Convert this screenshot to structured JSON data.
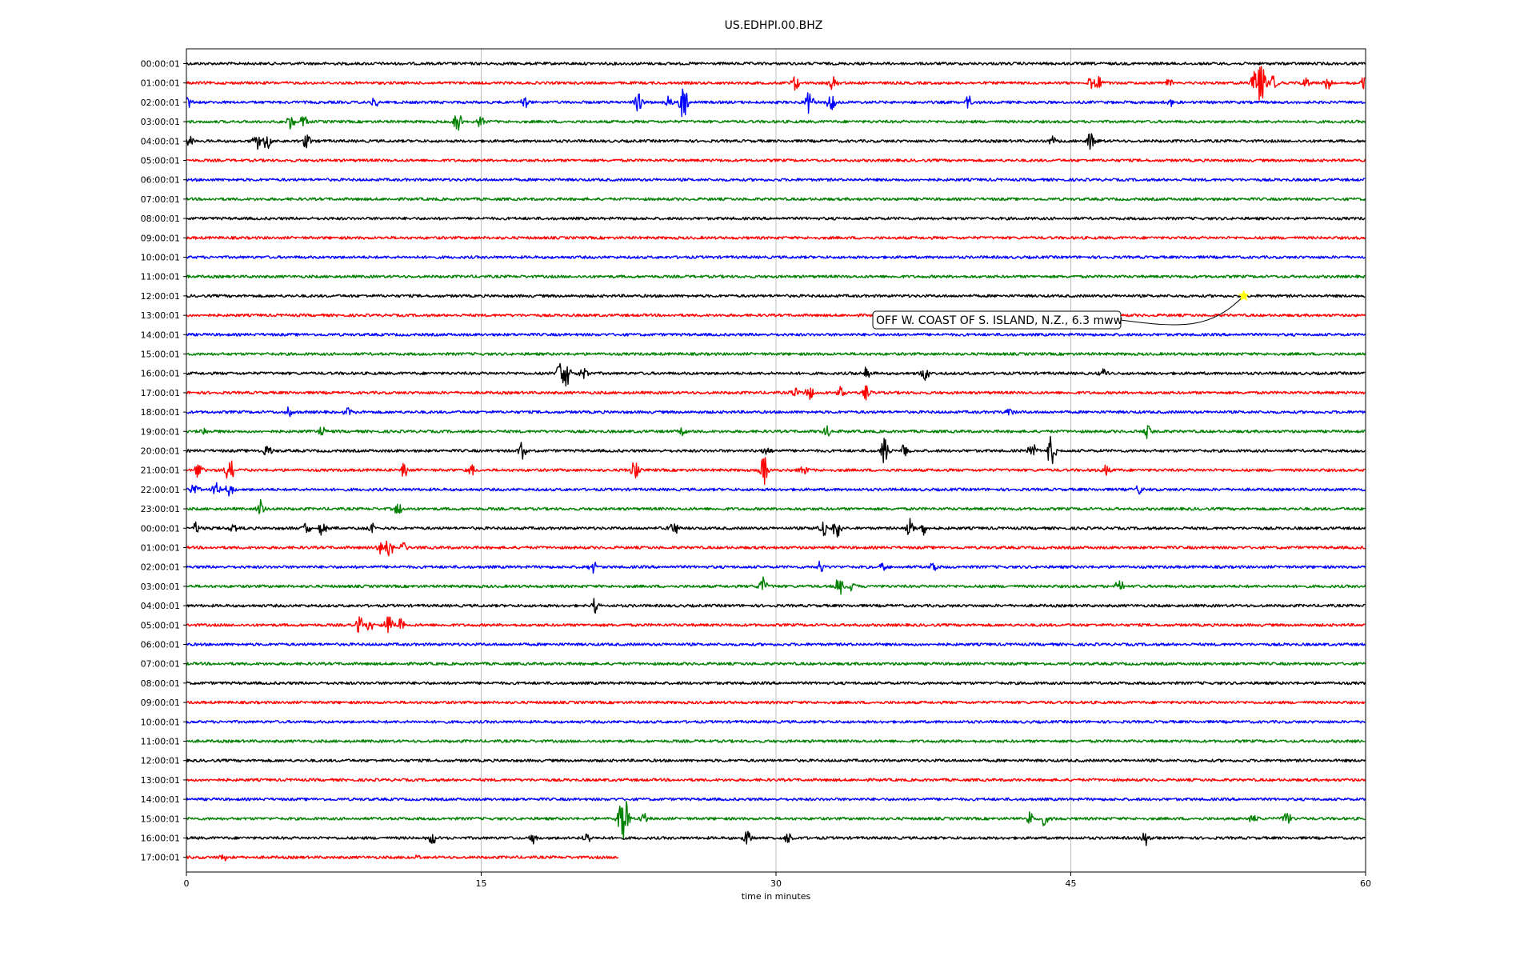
{
  "chart_data": {
    "type": "line",
    "title": "US.EDHPI.00.BHZ",
    "xlabel": "time in minutes",
    "ylabel": "",
    "xlim": [
      0,
      60
    ],
    "x_ticks": [
      0,
      15,
      30,
      45,
      60
    ],
    "grid": "vertical",
    "trace_colors": [
      "#000000",
      "#ff0000",
      "#0000ff",
      "#008000"
    ],
    "last_row_end_minutes": 22,
    "rows": [
      {
        "label": "00:00:01",
        "events": []
      },
      {
        "label": "01:00:01",
        "events": [
          {
            "t": 31,
            "a": 10
          },
          {
            "t": 32.9,
            "a": 9
          },
          {
            "t": 46,
            "a": 7
          },
          {
            "t": 46.4,
            "a": 8
          },
          {
            "t": 50,
            "a": 6
          },
          {
            "t": 54.7,
            "a": 33
          },
          {
            "t": 54.3,
            "a": 15
          },
          {
            "t": 55.3,
            "a": 8
          },
          {
            "t": 57,
            "a": 8
          },
          {
            "t": 58.1,
            "a": 8
          },
          {
            "t": 59.9,
            "a": 9
          }
        ]
      },
      {
        "label": "02:00:01",
        "events": [
          {
            "t": 0.1,
            "a": 8
          },
          {
            "t": 9.6,
            "a": 5
          },
          {
            "t": 17.2,
            "a": 7
          },
          {
            "t": 23,
            "a": 12
          },
          {
            "t": 24.6,
            "a": 9
          },
          {
            "t": 25.3,
            "a": 22
          },
          {
            "t": 31.7,
            "a": 14
          },
          {
            "t": 32.8,
            "a": 11
          },
          {
            "t": 39.8,
            "a": 8
          },
          {
            "t": 50.1,
            "a": 6
          }
        ]
      },
      {
        "label": "03:00:01",
        "events": [
          {
            "t": 5.3,
            "a": 10
          },
          {
            "t": 6,
            "a": 8
          },
          {
            "t": 13.8,
            "a": 14
          },
          {
            "t": 15,
            "a": 7
          }
        ]
      },
      {
        "label": "04:00:01",
        "events": [
          {
            "t": 0.2,
            "a": 7
          },
          {
            "t": 3.6,
            "a": 10
          },
          {
            "t": 4.1,
            "a": 11
          },
          {
            "t": 6.1,
            "a": 9
          },
          {
            "t": 44.1,
            "a": 6
          },
          {
            "t": 46,
            "a": 11
          }
        ]
      },
      {
        "label": "05:00:01",
        "events": []
      },
      {
        "label": "06:00:01",
        "events": []
      },
      {
        "label": "07:00:01",
        "events": []
      },
      {
        "label": "08:00:01",
        "events": []
      },
      {
        "label": "09:00:01",
        "events": []
      },
      {
        "label": "10:00:01",
        "events": []
      },
      {
        "label": "11:00:01",
        "events": []
      },
      {
        "label": "12:00:01",
        "events": []
      },
      {
        "label": "13:00:01",
        "events": []
      },
      {
        "label": "14:00:01",
        "events": []
      },
      {
        "label": "15:00:01",
        "events": []
      },
      {
        "label": "16:00:01",
        "events": [
          {
            "t": 19.3,
            "a": 25
          },
          {
            "t": 19.0,
            "a": 12
          },
          {
            "t": 20.2,
            "a": 7
          },
          {
            "t": 34.6,
            "a": 9
          },
          {
            "t": 37.6,
            "a": 8
          },
          {
            "t": 46.6,
            "a": 8
          }
        ]
      },
      {
        "label": "17:00:01",
        "events": [
          {
            "t": 31.0,
            "a": 8
          },
          {
            "t": 31.7,
            "a": 11
          },
          {
            "t": 33.3,
            "a": 7
          },
          {
            "t": 34.6,
            "a": 8
          }
        ]
      },
      {
        "label": "18:00:01",
        "events": [
          {
            "t": 5.2,
            "a": 6
          },
          {
            "t": 8.2,
            "a": 5
          },
          {
            "t": 41.9,
            "a": 5
          }
        ]
      },
      {
        "label": "19:00:01",
        "events": [
          {
            "t": 0.9,
            "a": 5
          },
          {
            "t": 6.9,
            "a": 5
          },
          {
            "t": 25.3,
            "a": 5
          },
          {
            "t": 32.6,
            "a": 8
          },
          {
            "t": 48.9,
            "a": 8
          }
        ]
      },
      {
        "label": "20:00:01",
        "events": [
          {
            "t": 4.1,
            "a": 8
          },
          {
            "t": 17.1,
            "a": 12
          },
          {
            "t": 29.5,
            "a": 6
          },
          {
            "t": 35.5,
            "a": 18
          },
          {
            "t": 36.6,
            "a": 14
          },
          {
            "t": 43.0,
            "a": 16
          },
          {
            "t": 44.0,
            "a": 20
          }
        ]
      },
      {
        "label": "21:00:01",
        "events": [
          {
            "t": 0.6,
            "a": 9
          },
          {
            "t": 2.2,
            "a": 18
          },
          {
            "t": 11.1,
            "a": 9
          },
          {
            "t": 14.5,
            "a": 7
          },
          {
            "t": 22.8,
            "a": 12
          },
          {
            "t": 29.4,
            "a": 20
          },
          {
            "t": 31.4,
            "a": 6
          },
          {
            "t": 46.8,
            "a": 8
          }
        ]
      },
      {
        "label": "22:00:01",
        "events": [
          {
            "t": 0.4,
            "a": 8
          },
          {
            "t": 1.5,
            "a": 9
          },
          {
            "t": 2.2,
            "a": 8
          },
          {
            "t": 48.5,
            "a": 6
          }
        ]
      },
      {
        "label": "23:00:01",
        "events": [
          {
            "t": 3.8,
            "a": 12
          },
          {
            "t": 10.8,
            "a": 9
          }
        ]
      },
      {
        "label": "00:00:01",
        "events": [
          {
            "t": 0.5,
            "a": 7
          },
          {
            "t": 2.4,
            "a": 7
          },
          {
            "t": 6.1,
            "a": 8
          },
          {
            "t": 6.9,
            "a": 9
          },
          {
            "t": 9.4,
            "a": 8
          },
          {
            "t": 24.8,
            "a": 12
          },
          {
            "t": 32.4,
            "a": 12
          },
          {
            "t": 33.1,
            "a": 12
          },
          {
            "t": 36.8,
            "a": 14
          },
          {
            "t": 37.5,
            "a": 10
          }
        ]
      },
      {
        "label": "01:00:01",
        "events": [
          {
            "t": 9.8,
            "a": 8
          },
          {
            "t": 10.3,
            "a": 13
          },
          {
            "t": 11.0,
            "a": 6
          }
        ]
      },
      {
        "label": "02:00:01",
        "events": [
          {
            "t": 20.7,
            "a": 8
          },
          {
            "t": 32.3,
            "a": 8
          },
          {
            "t": 35.4,
            "a": 5
          },
          {
            "t": 38.0,
            "a": 5
          }
        ]
      },
      {
        "label": "03:00:01",
        "events": [
          {
            "t": 29.3,
            "a": 13
          },
          {
            "t": 33.2,
            "a": 12
          },
          {
            "t": 33.9,
            "a": 6
          },
          {
            "t": 47.5,
            "a": 10
          }
        ]
      },
      {
        "label": "04:00:01",
        "events": [
          {
            "t": 20.8,
            "a": 9
          }
        ]
      },
      {
        "label": "05:00:01",
        "events": [
          {
            "t": 8.8,
            "a": 10
          },
          {
            "t": 9.3,
            "a": 8
          },
          {
            "t": 10.3,
            "a": 14
          },
          {
            "t": 10.9,
            "a": 7
          }
        ]
      },
      {
        "label": "06:00:01",
        "events": []
      },
      {
        "label": "07:00:01",
        "events": []
      },
      {
        "label": "08:00:01",
        "events": []
      },
      {
        "label": "09:00:01",
        "events": []
      },
      {
        "label": "10:00:01",
        "events": []
      },
      {
        "label": "11:00:01",
        "events": []
      },
      {
        "label": "12:00:01",
        "events": []
      },
      {
        "label": "13:00:01",
        "events": []
      },
      {
        "label": "14:00:01",
        "events": []
      },
      {
        "label": "15:00:01",
        "events": [
          {
            "t": 22.3,
            "a": 33
          },
          {
            "t": 22.1,
            "a": 14
          },
          {
            "t": 23.3,
            "a": 7
          },
          {
            "t": 42.9,
            "a": 9
          },
          {
            "t": 43.7,
            "a": 12
          },
          {
            "t": 54.3,
            "a": 6
          },
          {
            "t": 56.0,
            "a": 9
          }
        ]
      },
      {
        "label": "16:00:01",
        "events": [
          {
            "t": 12.5,
            "a": 9
          },
          {
            "t": 17.6,
            "a": 8
          },
          {
            "t": 20.4,
            "a": 7
          },
          {
            "t": 28.5,
            "a": 10
          },
          {
            "t": 30.6,
            "a": 7
          },
          {
            "t": 48.8,
            "a": 8
          }
        ]
      },
      {
        "label": "17:00:01",
        "events": [
          {
            "t": 1.9,
            "a": 6
          },
          {
            "t": 11.7,
            "a": 5
          }
        ]
      }
    ],
    "annotation": {
      "text": "OFF W. COAST OF S. ISLAND, N.Z., 6.3 mww",
      "row_index": 12,
      "minute": 53.8,
      "marker_color": "#ffff00"
    }
  }
}
